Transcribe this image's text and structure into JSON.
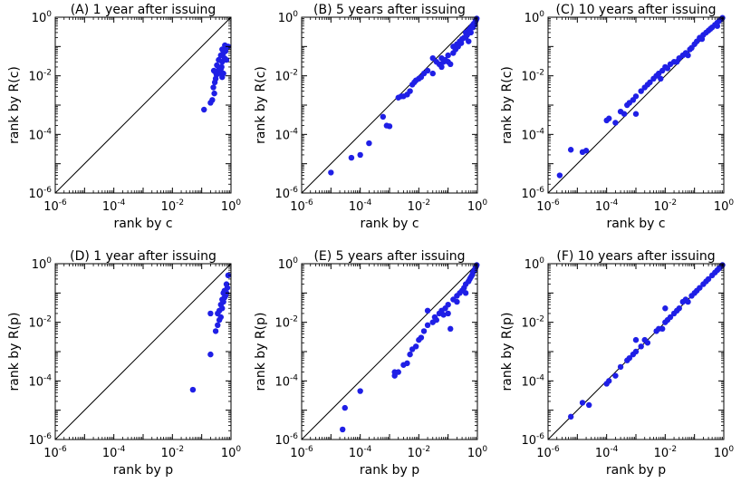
{
  "chart_data": [
    {
      "type": "scatter",
      "id": "A",
      "title": "(A) 1 year after issuing",
      "xlabel": "rank by c",
      "ylabel": "rank by R(c)",
      "xscale": "log",
      "yscale": "log",
      "xlim": [
        1e-06,
        1
      ],
      "ylim": [
        1e-06,
        1
      ],
      "x_ticks": [
        "10^-6",
        "10^-4",
        "10^-2",
        "10^0"
      ],
      "y_ticks": [
        "10^-6",
        "10^-4",
        "10^-2",
        "10^0"
      ],
      "reference_line": "y = x",
      "marker_color": "#1f1fe6",
      "points": [
        [
          0.12,
          0.0007
        ],
        [
          0.2,
          0.0012
        ],
        [
          0.23,
          0.0015
        ],
        [
          0.27,
          0.0025
        ],
        [
          0.25,
          0.004
        ],
        [
          0.28,
          0.006
        ],
        [
          0.3,
          0.008
        ],
        [
          0.32,
          0.011
        ],
        [
          0.3,
          0.013
        ],
        [
          0.36,
          0.012
        ],
        [
          0.42,
          0.013
        ],
        [
          0.26,
          0.015
        ],
        [
          0.38,
          0.016
        ],
        [
          0.45,
          0.017
        ],
        [
          0.5,
          0.009
        ],
        [
          0.55,
          0.012
        ],
        [
          0.48,
          0.02
        ],
        [
          0.33,
          0.023
        ],
        [
          0.5,
          0.03
        ],
        [
          0.38,
          0.035
        ],
        [
          0.6,
          0.04
        ],
        [
          0.7,
          0.035
        ],
        [
          0.45,
          0.05
        ],
        [
          0.55,
          0.06
        ],
        [
          0.65,
          0.07
        ],
        [
          0.5,
          0.08
        ],
        [
          0.7,
          0.09
        ],
        [
          0.62,
          0.11
        ],
        [
          0.8,
          0.1
        ]
      ]
    },
    {
      "type": "scatter",
      "id": "B",
      "title": "(B) 5 years after issuing",
      "xlabel": "rank by c",
      "ylabel": "rank by R(c)",
      "xscale": "log",
      "yscale": "log",
      "xlim": [
        1e-06,
        1
      ],
      "ylim": [
        1e-06,
        1
      ],
      "x_ticks": [
        "10^-6",
        "10^-4",
        "10^-2",
        "10^0"
      ],
      "y_ticks": [
        "10^-6",
        "10^-4",
        "10^-2",
        "10^0"
      ],
      "reference_line": "y = x",
      "marker_color": "#1f1fe6",
      "points": [
        [
          1e-05,
          5e-06
        ],
        [
          5e-05,
          1.6e-05
        ],
        [
          0.0001,
          2e-05
        ],
        [
          0.0002,
          5e-05
        ],
        [
          0.0006,
          0.0004
        ],
        [
          0.0008,
          0.0002
        ],
        [
          0.001,
          0.00019
        ],
        [
          0.002,
          0.0018
        ],
        [
          0.0025,
          0.002
        ],
        [
          0.003,
          0.002
        ],
        [
          0.004,
          0.0023
        ],
        [
          0.005,
          0.003
        ],
        [
          0.006,
          0.005
        ],
        [
          0.007,
          0.006
        ],
        [
          0.008,
          0.007
        ],
        [
          0.01,
          0.008
        ],
        [
          0.012,
          0.009
        ],
        [
          0.015,
          0.012
        ],
        [
          0.02,
          0.015
        ],
        [
          0.03,
          0.04
        ],
        [
          0.03,
          0.012
        ],
        [
          0.04,
          0.03
        ],
        [
          0.05,
          0.025
        ],
        [
          0.06,
          0.02
        ],
        [
          0.06,
          0.04
        ],
        [
          0.07,
          0.03
        ],
        [
          0.08,
          0.035
        ],
        [
          0.1,
          0.03
        ],
        [
          0.1,
          0.05
        ],
        [
          0.12,
          0.025
        ],
        [
          0.15,
          0.06
        ],
        [
          0.15,
          0.1
        ],
        [
          0.18,
          0.08
        ],
        [
          0.2,
          0.12
        ],
        [
          0.22,
          0.1
        ],
        [
          0.25,
          0.15
        ],
        [
          0.28,
          0.13
        ],
        [
          0.3,
          0.18
        ],
        [
          0.35,
          0.2
        ],
        [
          0.4,
          0.2
        ],
        [
          0.4,
          0.3
        ],
        [
          0.45,
          0.25
        ],
        [
          0.5,
          0.35
        ],
        [
          0.5,
          0.15
        ],
        [
          0.55,
          0.4
        ],
        [
          0.6,
          0.3
        ],
        [
          0.65,
          0.5
        ],
        [
          0.7,
          0.45
        ],
        [
          0.75,
          0.6
        ],
        [
          0.8,
          0.55
        ],
        [
          0.85,
          0.7
        ],
        [
          0.9,
          0.8
        ],
        [
          0.95,
          0.9
        ]
      ]
    },
    {
      "type": "scatter",
      "id": "C",
      "title": "(C) 10 years after issuing",
      "xlabel": "rank by c",
      "ylabel": "rank by R(c)",
      "xscale": "log",
      "yscale": "log",
      "xlim": [
        1e-06,
        1
      ],
      "ylim": [
        1e-06,
        1
      ],
      "x_ticks": [
        "10^-6",
        "10^-4",
        "10^-2",
        "10^0"
      ],
      "y_ticks": [
        "10^-6",
        "10^-4",
        "10^-2",
        "10^0"
      ],
      "reference_line": "y = x",
      "marker_color": "#1f1fe6",
      "points": [
        [
          2.5e-06,
          4e-06
        ],
        [
          6e-06,
          3e-05
        ],
        [
          1.5e-05,
          2.5e-05
        ],
        [
          2e-05,
          2.8e-05
        ],
        [
          0.0001,
          0.0003
        ],
        [
          0.00012,
          0.00035
        ],
        [
          0.0002,
          0.00025
        ],
        [
          0.0003,
          0.0006
        ],
        [
          0.0004,
          0.0005
        ],
        [
          0.0005,
          0.001
        ],
        [
          0.0006,
          0.0012
        ],
        [
          0.0008,
          0.0015
        ],
        [
          0.001,
          0.002
        ],
        [
          0.001,
          0.0005
        ],
        [
          0.0015,
          0.003
        ],
        [
          0.002,
          0.004
        ],
        [
          0.0025,
          0.005
        ],
        [
          0.003,
          0.006
        ],
        [
          0.004,
          0.008
        ],
        [
          0.005,
          0.01
        ],
        [
          0.006,
          0.012
        ],
        [
          0.007,
          0.008
        ],
        [
          0.008,
          0.015
        ],
        [
          0.01,
          0.02
        ],
        [
          0.012,
          0.018
        ],
        [
          0.015,
          0.025
        ],
        [
          0.02,
          0.03
        ],
        [
          0.025,
          0.03
        ],
        [
          0.03,
          0.04
        ],
        [
          0.04,
          0.05
        ],
        [
          0.05,
          0.06
        ],
        [
          0.06,
          0.05
        ],
        [
          0.07,
          0.08
        ],
        [
          0.08,
          0.09
        ],
        [
          0.1,
          0.12
        ],
        [
          0.12,
          0.15
        ],
        [
          0.15,
          0.2
        ],
        [
          0.18,
          0.18
        ],
        [
          0.2,
          0.25
        ],
        [
          0.25,
          0.3
        ],
        [
          0.3,
          0.35
        ],
        [
          0.35,
          0.4
        ],
        [
          0.4,
          0.45
        ],
        [
          0.5,
          0.55
        ],
        [
          0.6,
          0.5
        ],
        [
          0.6,
          0.65
        ],
        [
          0.7,
          0.75
        ],
        [
          0.8,
          0.85
        ],
        [
          0.9,
          0.95
        ]
      ]
    },
    {
      "type": "scatter",
      "id": "D",
      "title": "(D) 1 year after issuing",
      "xlabel": "rank by p",
      "ylabel": "rank by R(p)",
      "xscale": "log",
      "yscale": "log",
      "xlim": [
        1e-06,
        1
      ],
      "ylim": [
        1e-06,
        1
      ],
      "x_ticks": [
        "10^-6",
        "10^-4",
        "10^-2",
        "10^0"
      ],
      "y_ticks": [
        "10^-6",
        "10^-4",
        "10^-2",
        "10^0"
      ],
      "reference_line": "y = x",
      "marker_color": "#1f1fe6",
      "points": [
        [
          0.05,
          5e-05
        ],
        [
          0.2,
          0.0008
        ],
        [
          0.2,
          0.02
        ],
        [
          0.3,
          0.005
        ],
        [
          0.35,
          0.008
        ],
        [
          0.35,
          0.02
        ],
        [
          0.4,
          0.012
        ],
        [
          0.45,
          0.015
        ],
        [
          0.4,
          0.025
        ],
        [
          0.5,
          0.03
        ],
        [
          0.45,
          0.04
        ],
        [
          0.55,
          0.05
        ],
        [
          0.5,
          0.06
        ],
        [
          0.6,
          0.07
        ],
        [
          0.65,
          0.08
        ],
        [
          0.55,
          0.1
        ],
        [
          0.7,
          0.1
        ],
        [
          0.6,
          0.12
        ],
        [
          0.75,
          0.15
        ],
        [
          0.7,
          0.2
        ],
        [
          0.8,
          0.4
        ]
      ]
    },
    {
      "type": "scatter",
      "id": "E",
      "title": "(E) 5 years after issuing",
      "xlabel": "rank by p",
      "ylabel": "rank by R(p)",
      "xscale": "log",
      "yscale": "log",
      "xlim": [
        1e-06,
        1
      ],
      "ylim": [
        1e-06,
        1
      ],
      "x_ticks": [
        "10^-6",
        "10^-4",
        "10^-2",
        "10^0"
      ],
      "y_ticks": [
        "10^-6",
        "10^-4",
        "10^-2",
        "10^0"
      ],
      "reference_line": "y = x",
      "marker_color": "#1f1fe6",
      "points": [
        [
          2.5e-05,
          2.2e-06
        ],
        [
          3e-05,
          1.2e-05
        ],
        [
          0.0001,
          4.5e-05
        ],
        [
          0.0015,
          0.00015
        ],
        [
          0.0015,
          0.0002
        ],
        [
          0.002,
          0.0002
        ],
        [
          0.003,
          0.00035
        ],
        [
          0.004,
          0.0004
        ],
        [
          0.005,
          0.0008
        ],
        [
          0.006,
          0.0012
        ],
        [
          0.008,
          0.0015
        ],
        [
          0.01,
          0.0025
        ],
        [
          0.012,
          0.003
        ],
        [
          0.015,
          0.005
        ],
        [
          0.02,
          0.008
        ],
        [
          0.02,
          0.025
        ],
        [
          0.03,
          0.01
        ],
        [
          0.035,
          0.015
        ],
        [
          0.04,
          0.012
        ],
        [
          0.05,
          0.02
        ],
        [
          0.06,
          0.025
        ],
        [
          0.07,
          0.018
        ],
        [
          0.08,
          0.03
        ],
        [
          0.1,
          0.02
        ],
        [
          0.1,
          0.04
        ],
        [
          0.12,
          0.006
        ],
        [
          0.15,
          0.06
        ],
        [
          0.2,
          0.05
        ],
        [
          0.2,
          0.08
        ],
        [
          0.25,
          0.1
        ],
        [
          0.3,
          0.12
        ],
        [
          0.35,
          0.15
        ],
        [
          0.4,
          0.1
        ],
        [
          0.4,
          0.2
        ],
        [
          0.5,
          0.25
        ],
        [
          0.55,
          0.3
        ],
        [
          0.6,
          0.35
        ],
        [
          0.65,
          0.4
        ],
        [
          0.7,
          0.5
        ],
        [
          0.75,
          0.55
        ],
        [
          0.8,
          0.6
        ],
        [
          0.85,
          0.7
        ],
        [
          0.9,
          0.8
        ],
        [
          0.95,
          0.9
        ]
      ]
    },
    {
      "type": "scatter",
      "id": "F",
      "title": "(F) 10 years after issuing",
      "xlabel": "rank by p",
      "ylabel": "rank by R(p)",
      "xscale": "log",
      "yscale": "log",
      "xlim": [
        1e-06,
        1
      ],
      "ylim": [
        1e-06,
        1
      ],
      "x_ticks": [
        "10^-6",
        "10^-4",
        "10^-2",
        "10^0"
      ],
      "y_ticks": [
        "10^-6",
        "10^-4",
        "10^-2",
        "10^0"
      ],
      "reference_line": "y = x",
      "marker_color": "#1f1fe6",
      "points": [
        [
          6e-06,
          6e-06
        ],
        [
          1.5e-05,
          1.8e-05
        ],
        [
          2.5e-05,
          1.5e-05
        ],
        [
          0.0001,
          8e-05
        ],
        [
          0.00012,
          0.0001
        ],
        [
          0.0002,
          0.00015
        ],
        [
          0.0003,
          0.0003
        ],
        [
          0.0005,
          0.0005
        ],
        [
          0.0006,
          0.0006
        ],
        [
          0.0008,
          0.0008
        ],
        [
          0.001,
          0.0025
        ],
        [
          0.001,
          0.001
        ],
        [
          0.0015,
          0.0015
        ],
        [
          0.002,
          0.0025
        ],
        [
          0.0025,
          0.002
        ],
        [
          0.005,
          0.005
        ],
        [
          0.006,
          0.006
        ],
        [
          0.008,
          0.006
        ],
        [
          0.01,
          0.01
        ],
        [
          0.01,
          0.03
        ],
        [
          0.012,
          0.012
        ],
        [
          0.015,
          0.015
        ],
        [
          0.02,
          0.02
        ],
        [
          0.025,
          0.025
        ],
        [
          0.03,
          0.03
        ],
        [
          0.04,
          0.05
        ],
        [
          0.05,
          0.06
        ],
        [
          0.06,
          0.05
        ],
        [
          0.08,
          0.08
        ],
        [
          0.1,
          0.1
        ],
        [
          0.12,
          0.12
        ],
        [
          0.15,
          0.15
        ],
        [
          0.2,
          0.2
        ],
        [
          0.25,
          0.25
        ],
        [
          0.3,
          0.3
        ],
        [
          0.4,
          0.4
        ],
        [
          0.5,
          0.5
        ],
        [
          0.6,
          0.6
        ],
        [
          0.7,
          0.7
        ],
        [
          0.8,
          0.8
        ],
        [
          0.9,
          0.9
        ]
      ]
    }
  ]
}
